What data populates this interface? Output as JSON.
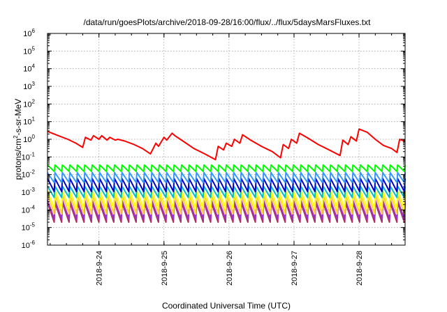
{
  "chart_data": {
    "type": "line",
    "title": "/data/run/goesPlots/archive/2018-09-28/16:00/flux/../flux/5daysMarsFluxes.txt",
    "xlabel": "Coordinated Universal Time (UTC)",
    "ylabel_main": "protons/cm",
    "ylabel_sup": "2",
    "ylabel_rest": "-s-sr-MeV",
    "xlim": [
      "2018-09-23T05:00",
      "2018-09-28T17:00"
    ],
    "ylim": [
      1e-06,
      1000000.0
    ],
    "yscale": "log",
    "grid": true,
    "legend": "none",
    "x_ticks": [
      "2018-9-24",
      "2018-9-25",
      "2018-9-26",
      "2018-9-27",
      "2018-9-28"
    ],
    "x_tick_dates": [
      "2018-09-24T00:00",
      "2018-09-25T00:00",
      "2018-09-26T00:00",
      "2018-09-27T00:00",
      "2018-09-28T00:00"
    ],
    "y_ticks": [
      {
        "base": "10",
        "exp": "-6",
        "value": 1e-06
      },
      {
        "base": "10",
        "exp": "-5",
        "value": 1e-05
      },
      {
        "base": "10",
        "exp": "-4",
        "value": 0.0001
      },
      {
        "base": "10",
        "exp": "-3",
        "value": 0.001
      },
      {
        "base": "10",
        "exp": "-2",
        "value": 0.01
      },
      {
        "base": "10",
        "exp": "-1",
        "value": 0.1
      },
      {
        "base": "10",
        "exp": "0",
        "value": 1
      },
      {
        "base": "10",
        "exp": "1",
        "value": 10
      },
      {
        "base": "10",
        "exp": "2",
        "value": 100
      },
      {
        "base": "10",
        "exp": "3",
        "value": 1000
      },
      {
        "base": "10",
        "exp": "4",
        "value": 10000
      },
      {
        "base": "10",
        "exp": "5",
        "value": 100000
      },
      {
        "base": "10",
        "exp": "6",
        "value": 1000000
      }
    ],
    "series": [
      {
        "color": "#ff0000",
        "x": [
          "2018-09-23T05:00",
          "2018-09-23T09:00",
          "2018-09-23T12:30",
          "2018-09-23T15:30",
          "2018-09-23T18:00",
          "2018-09-23T19:00",
          "2018-09-23T21:00",
          "2018-09-23T22:00",
          "2018-09-24T00:00",
          "2018-09-24T01:00",
          "2018-09-24T03:00",
          "2018-09-24T04:00",
          "2018-09-24T06:00",
          "2018-09-24T07:00",
          "2018-09-24T09:30",
          "2018-09-24T13:00",
          "2018-09-24T16:00",
          "2018-09-24T19:00",
          "2018-09-24T21:00",
          "2018-09-24T22:00",
          "2018-09-25T00:00",
          "2018-09-25T01:00",
          "2018-09-25T03:00",
          "2018-09-25T04:00",
          "2018-09-25T07:00",
          "2018-09-25T11:00",
          "2018-09-25T15:00",
          "2018-09-25T19:00",
          "2018-09-25T20:00",
          "2018-09-25T22:00",
          "2018-09-25T23:00",
          "2018-09-26T01:00",
          "2018-09-26T02:00",
          "2018-09-26T04:00",
          "2018-09-26T05:00",
          "2018-09-26T08:00",
          "2018-09-26T12:00",
          "2018-09-26T16:00",
          "2018-09-26T19:00",
          "2018-09-26T20:00",
          "2018-09-26T22:00",
          "2018-09-26T23:00",
          "2018-09-27T01:00",
          "2018-09-27T02:00",
          "2018-09-27T05:00",
          "2018-09-27T09:00",
          "2018-09-27T13:00",
          "2018-09-27T17:00",
          "2018-09-27T18:00",
          "2018-09-27T20:00",
          "2018-09-27T21:00",
          "2018-09-27T23:00",
          "2018-09-28T00:00",
          "2018-09-28T03:00",
          "2018-09-28T06:00",
          "2018-09-28T09:00",
          "2018-09-28T12:00",
          "2018-09-28T14:00",
          "2018-09-28T15:00",
          "2018-09-28T17:00"
        ],
        "y": [
          2.8,
          1.6,
          1.0,
          0.6,
          0.35,
          1.3,
          0.9,
          1.6,
          1.0,
          1.6,
          0.9,
          1.3,
          0.9,
          1.0,
          0.8,
          0.5,
          0.3,
          0.15,
          0.6,
          0.4,
          1.3,
          0.9,
          2.2,
          1.6,
          0.8,
          0.3,
          0.15,
          0.07,
          0.4,
          0.25,
          0.6,
          0.4,
          1.0,
          0.6,
          1.8,
          0.9,
          0.4,
          0.2,
          0.09,
          0.5,
          0.3,
          1.0,
          0.6,
          2.2,
          1.2,
          0.5,
          0.25,
          0.12,
          0.9,
          0.5,
          1.4,
          0.8,
          3.8,
          2.5,
          1.0,
          0.45,
          0.3,
          0.18,
          1.0,
          0.75
        ]
      },
      {
        "color": "#00ff00",
        "cycles": 48,
        "y_peak": 0.035,
        "y_trough": 0.015
      },
      {
        "color": "#3399ff",
        "cycles": 48,
        "y_peak": 0.013,
        "y_trough": 0.0035
      },
      {
        "color": "#0000cc",
        "cycles": 48,
        "y_peak": 0.006,
        "y_trough": 0.0011
      },
      {
        "color": "#00c0c0",
        "cycles": 48,
        "y_peak": 0.0022,
        "y_trough": 0.0005
      },
      {
        "color": "#ffff00",
        "cycles": 48,
        "y_peak": 0.0012,
        "y_trough": 0.00012
      },
      {
        "color": "#ffcc33",
        "cycles": 48,
        "y_peak": 0.0007,
        "y_trough": 6e-05
      },
      {
        "color": "#9933cc",
        "cycles": 48,
        "y_peak": 0.00035,
        "y_trough": 3e-05
      },
      {
        "color": "#b03060",
        "cycles": 48,
        "y_peak": 0.00025,
        "y_trough": 2e-05
      }
    ]
  }
}
